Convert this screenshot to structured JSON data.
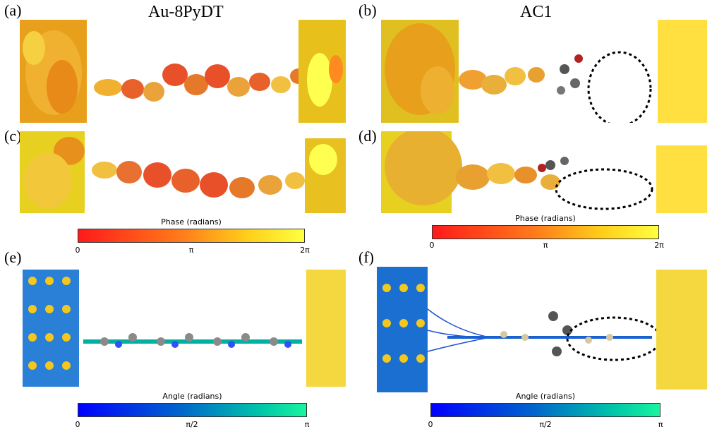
{
  "panels": {
    "a": {
      "label": "(a)",
      "title": "Au-8PyDT"
    },
    "b": {
      "label": "(b)",
      "title": "AC1"
    },
    "c": {
      "label": "(c)"
    },
    "d": {
      "label": "(d)"
    },
    "e": {
      "label": "(e)"
    },
    "f": {
      "label": "(f)"
    }
  },
  "colorbars": {
    "phase_left": {
      "title": "Phase (radians)",
      "ticks": [
        "0",
        "π",
        "2π"
      ]
    },
    "phase_right": {
      "title": "Phase (radians)",
      "ticks": [
        "0",
        "π",
        "2π"
      ]
    },
    "angle_left": {
      "title": "Angle (radians)",
      "ticks": [
        "0",
        "π/2",
        "π"
      ]
    },
    "angle_right": {
      "title": "Angle (radians)",
      "ticks": [
        "0",
        "π/2",
        "π"
      ]
    }
  },
  "colors": {
    "gold_atom": "#f2c81e",
    "phase_low": "#ff1a1a",
    "phase_high": "#ffff40",
    "angle_low": "#0000ff",
    "angle_high": "#18f5a0",
    "carbon": "#8a8a8a",
    "nitrogen": "#3050f8",
    "oxygen": "#b22222"
  }
}
